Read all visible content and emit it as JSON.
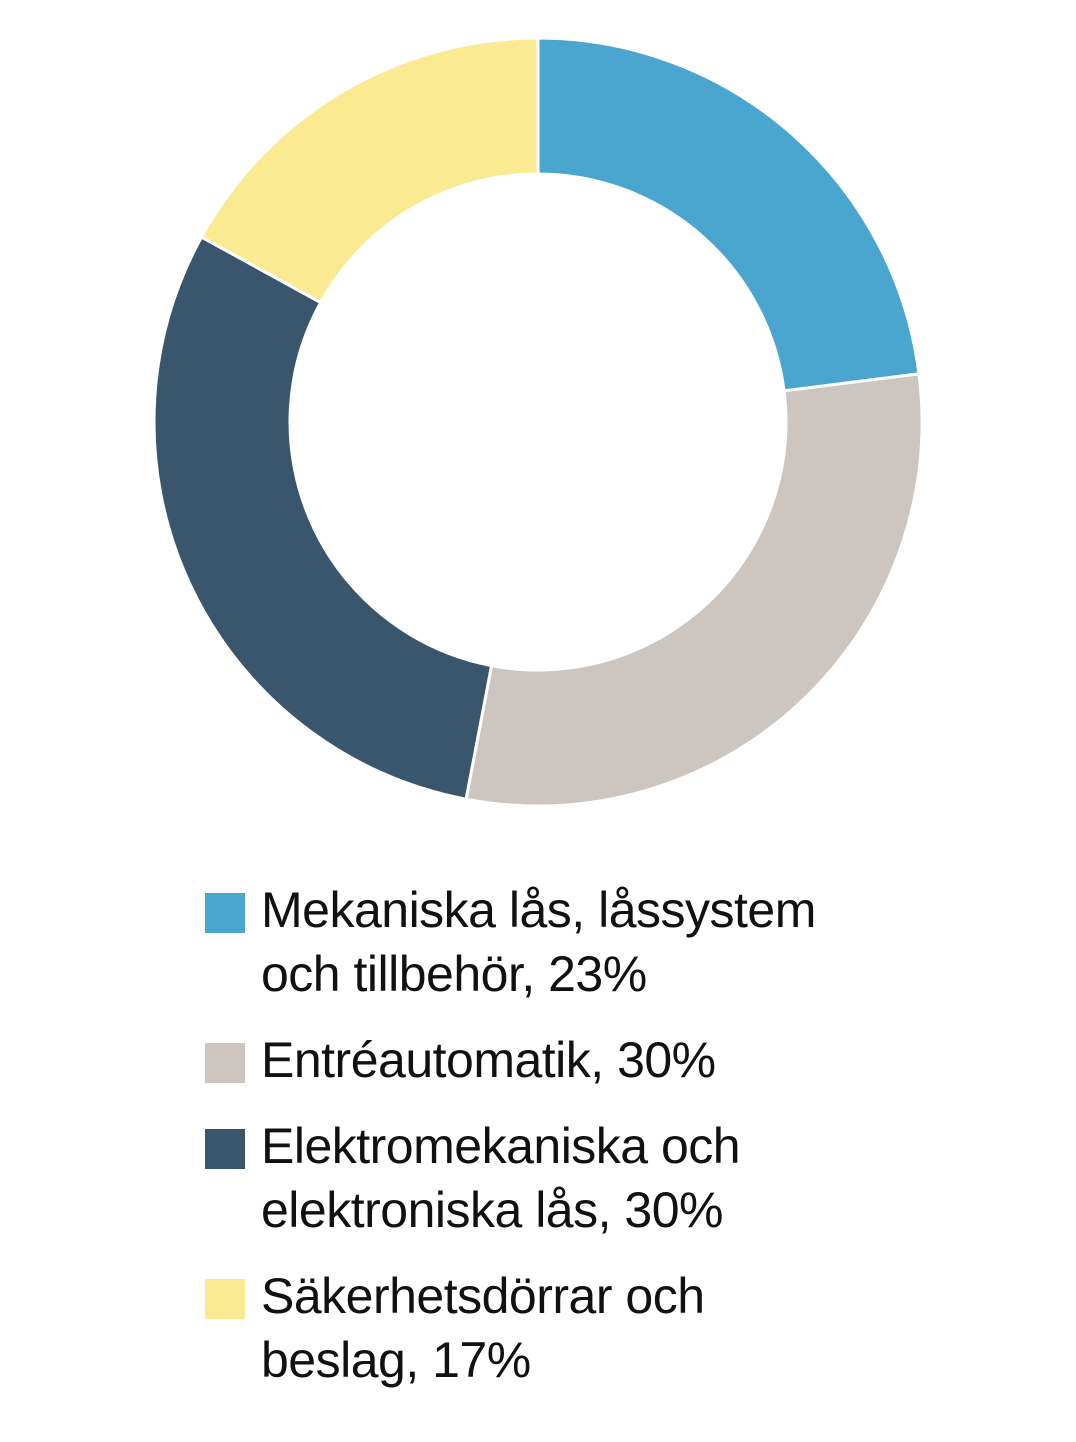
{
  "chart_data": {
    "type": "pie",
    "donut": true,
    "title": "",
    "series": [
      {
        "name": "Mekaniska lås, låssystem och tillbehör, 23%",
        "value": 23,
        "color": "#4aa6ce"
      },
      {
        "name": "Entréautomatik, 30%",
        "value": 30,
        "color": "#cdc5bf"
      },
      {
        "name": "Elektromekaniska och elektroniska lås, 30%",
        "value": 30,
        "color": "#3a566c"
      },
      {
        "name": "Säkerhetsdörrar och beslag, 17%",
        "value": 17,
        "color": "#faeb92"
      }
    ],
    "legend_position": "bottom"
  },
  "legend": {
    "items": [
      {
        "label_line1": "Mekaniska lås, låssystem",
        "label_line2": "och tillbehör, 23%"
      },
      {
        "label_line1": "Entréautomatik, 30%",
        "label_line2": ""
      },
      {
        "label_line1": "Elektromekaniska och",
        "label_line2": "elektroniska lås, 30%"
      },
      {
        "label_line1": "Säkerhetsdörrar och",
        "label_line2": "beslag, 17%"
      }
    ]
  }
}
